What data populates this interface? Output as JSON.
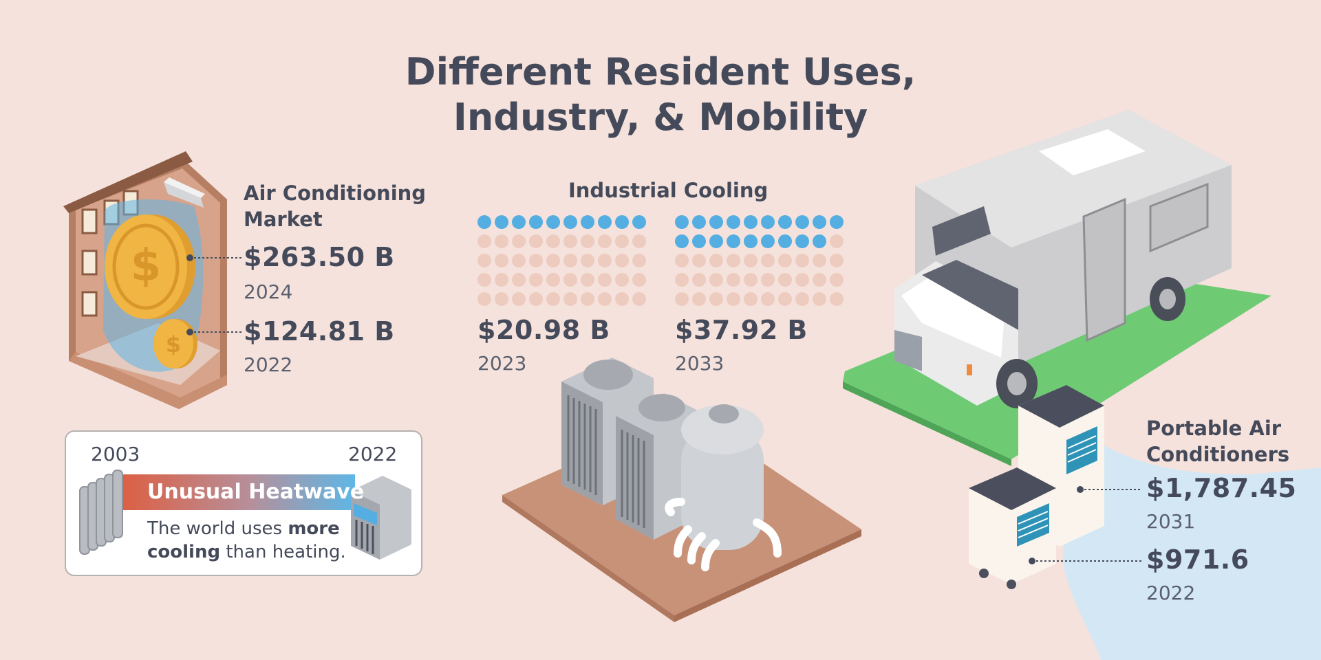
{
  "title": {
    "line1": "Different Resident Uses,",
    "line2": "Industry, & Mobility"
  },
  "ac_market": {
    "heading_line1": "Air Conditioning",
    "heading_line2": "Market",
    "value_2024": "$263.50 B",
    "year_2024": "2024",
    "value_2022": "$124.81 B",
    "year_2022": "2022"
  },
  "industrial": {
    "heading": "Industrial Cooling",
    "value_2023": "$20.98 B",
    "year_2023": "2023",
    "value_2033": "$37.92 B",
    "year_2033": "2033",
    "fill_2023": 0.2,
    "fill_2033": 0.37
  },
  "heatwave": {
    "year_left": "2003",
    "year_right": "2022",
    "label": "Unusual Heatwave",
    "text_pre": "The world uses ",
    "text_bold1": "more",
    "text_bold2": "cooling",
    "text_post": " than heating."
  },
  "portable": {
    "heading_line1": "Portable Air",
    "heading_line2": "Conditioners",
    "value_2031": "$1,787.45",
    "year_2031": "2031",
    "value_2022": "$971.6",
    "year_2022": "2022"
  },
  "colors": {
    "background": "#f5e2dc",
    "text": "#454a5a",
    "dot_filled": "#55aee1",
    "dot_empty": "#eecbbf",
    "grass": "#6ecb74",
    "coin": "#f0b542"
  }
}
